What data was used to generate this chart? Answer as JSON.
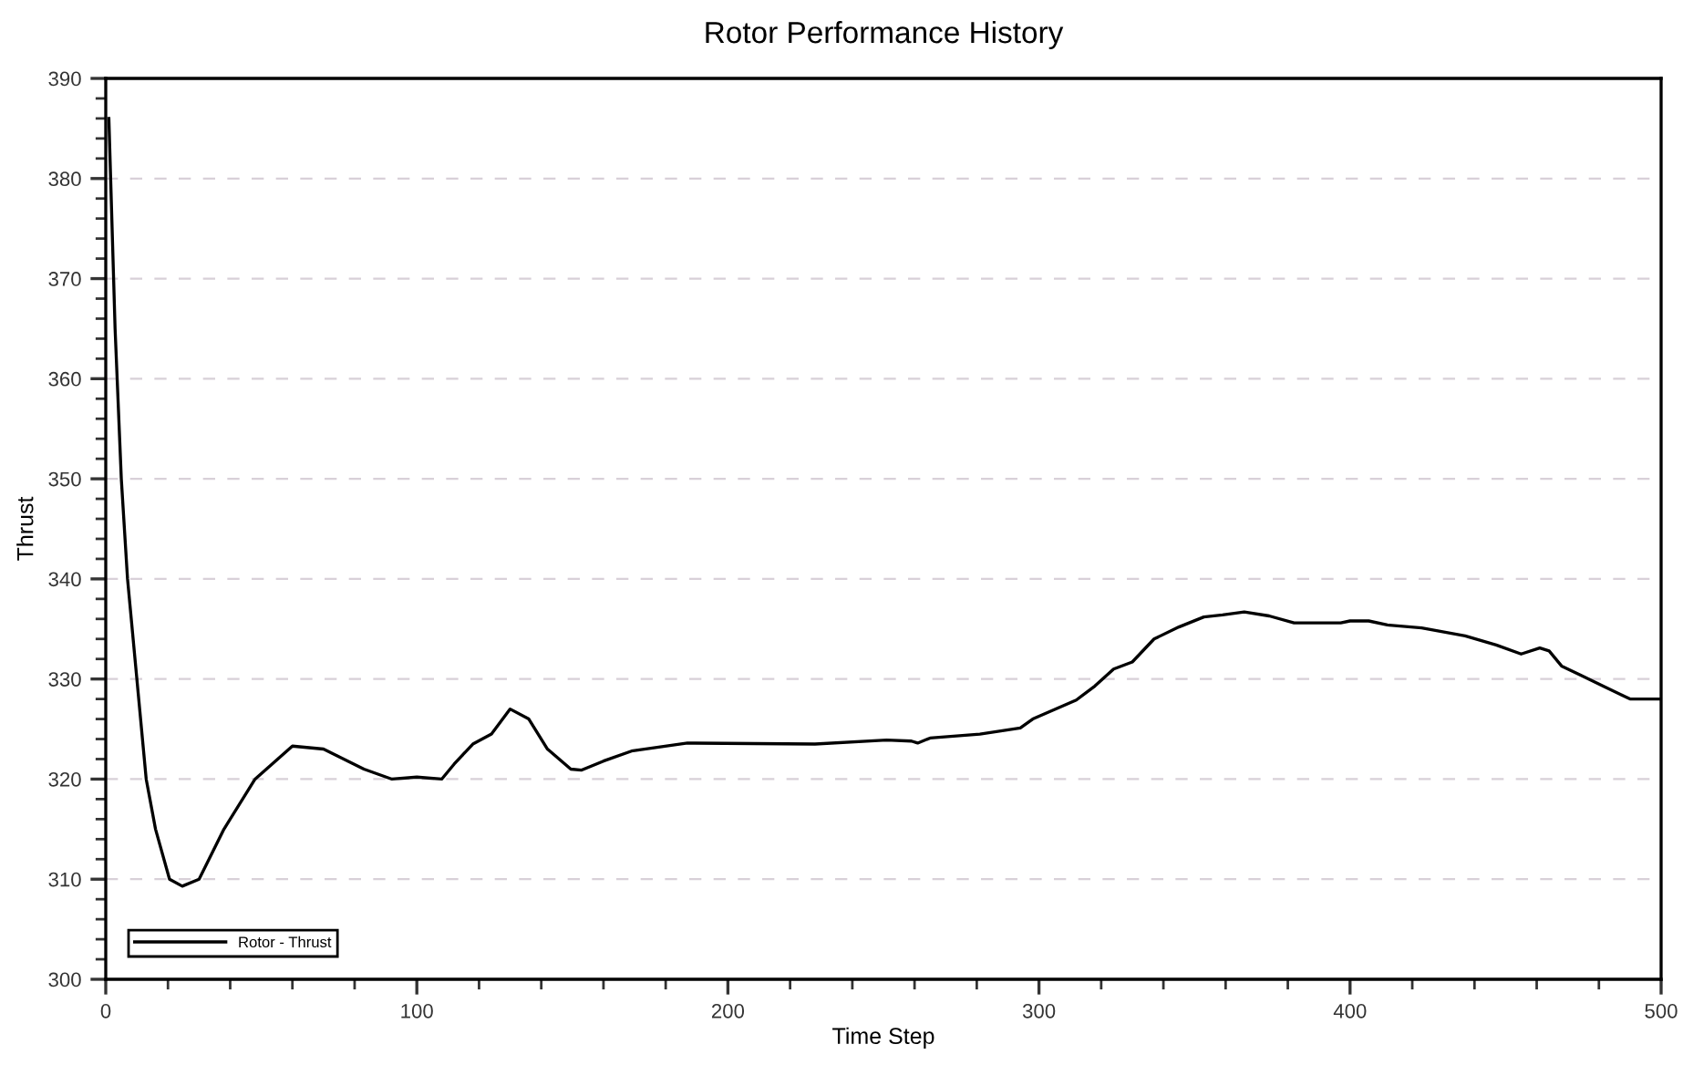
{
  "chart_data": {
    "type": "line",
    "title": "Rotor Performance History",
    "xlabel": "Time Step",
    "ylabel": "Thrust",
    "xlim": [
      0,
      500
    ],
    "ylim": [
      300,
      390
    ],
    "xticks": [
      0,
      {
        "value": 20,
        "label": null
      },
      {
        "value": 40,
        "label": null
      },
      {
        "value": 60,
        "label": null
      },
      {
        "value": 80,
        "label": null
      },
      100,
      {
        "value": 120,
        "label": null
      },
      {
        "value": 140,
        "label": null
      },
      {
        "value": 160,
        "label": null
      },
      {
        "value": 180,
        "label": null
      },
      200,
      {
        "value": 220,
        "label": null
      },
      {
        "value": 240,
        "label": null
      },
      {
        "value": 260,
        "label": null
      },
      {
        "value": 280,
        "label": null
      },
      300,
      {
        "value": 320,
        "label": null
      },
      {
        "value": 340,
        "label": null
      },
      {
        "value": 360,
        "label": null
      },
      {
        "value": 380,
        "label": null
      },
      400,
      {
        "value": 420,
        "label": null
      },
      {
        "value": 440,
        "label": null
      },
      {
        "value": 460,
        "label": null
      },
      {
        "value": 480,
        "label": null
      },
      500
    ],
    "yticks": [
      300,
      {
        "value": 302,
        "label": null
      },
      {
        "value": 304,
        "label": null
      },
      {
        "value": 306,
        "label": null
      },
      {
        "value": 308,
        "label": null
      },
      310,
      {
        "value": 312,
        "label": null
      },
      {
        "value": 314,
        "label": null
      },
      {
        "value": 316,
        "label": null
      },
      {
        "value": 318,
        "label": null
      },
      320,
      {
        "value": 322,
        "label": null
      },
      {
        "value": 324,
        "label": null
      },
      {
        "value": 326,
        "label": null
      },
      {
        "value": 328,
        "label": null
      },
      330,
      {
        "value": 332,
        "label": null
      },
      {
        "value": 334,
        "label": null
      },
      {
        "value": 336,
        "label": null
      },
      {
        "value": 338,
        "label": null
      },
      340,
      {
        "value": 342,
        "label": null
      },
      {
        "value": 344,
        "label": null
      },
      {
        "value": 346,
        "label": null
      },
      {
        "value": 348,
        "label": null
      },
      350,
      {
        "value": 352,
        "label": null
      },
      {
        "value": 354,
        "label": null
      },
      {
        "value": 356,
        "label": null
      },
      {
        "value": 358,
        "label": null
      },
      360,
      {
        "value": 362,
        "label": null
      },
      {
        "value": 364,
        "label": null
      },
      {
        "value": 366,
        "label": null
      },
      {
        "value": 368,
        "label": null
      },
      370,
      {
        "value": 372,
        "label": null
      },
      {
        "value": 374,
        "label": null
      },
      {
        "value": 376,
        "label": null
      },
      {
        "value": 378,
        "label": null
      },
      380,
      {
        "value": 382,
        "label": null
      },
      {
        "value": 384,
        "label": null
      },
      {
        "value": 386,
        "label": null
      },
      {
        "value": 388,
        "label": null
      },
      390
    ],
    "grid": "y",
    "legend": "bottom left",
    "line_style": "solid",
    "series": [
      {
        "name": "Rotor - Thrust",
        "color": "#000000",
        "x": [
          1,
          3,
          5,
          7,
          10,
          13,
          16,
          20.5,
          24.6,
          30,
          38,
          48,
          60,
          70,
          83,
          92,
          100,
          108,
          112,
          118,
          124,
          130,
          136,
          142,
          149.5,
          153,
          160,
          169,
          187,
          228,
          251,
          259,
          261,
          265,
          281,
          294,
          298,
          312,
          318,
          324,
          330,
          337,
          345,
          353,
          359,
          366,
          374,
          382,
          397,
          400,
          406,
          412,
          423,
          437,
          447,
          455,
          461,
          464,
          468,
          474,
          482,
          490,
          500
        ],
        "values": [
          386,
          365,
          350,
          340,
          330,
          320,
          315,
          310,
          309.3,
          310,
          315,
          320,
          323.3,
          323,
          321,
          320,
          320.2,
          320,
          321.5,
          323.5,
          324.5,
          327,
          326,
          323,
          321,
          320.9,
          321.8,
          322.8,
          323.6,
          323.5,
          323.9,
          323.8,
          323.6,
          324.1,
          324.5,
          325.1,
          326,
          327.9,
          329.3,
          331,
          331.7,
          334,
          335.2,
          336.2,
          336.4,
          336.7,
          336.3,
          335.6,
          335.6,
          335.8,
          335.8,
          335.4,
          335.1,
          334.3,
          333.4,
          332.5,
          333.1,
          332.8,
          331.3,
          330.4,
          329.2,
          328,
          328
        ]
      }
    ]
  }
}
